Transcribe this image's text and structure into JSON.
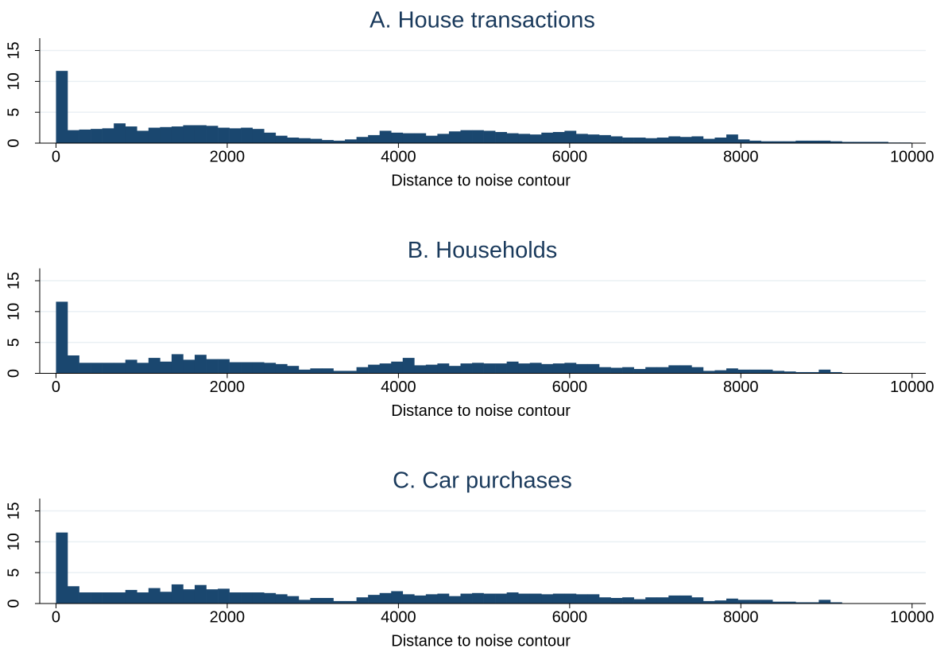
{
  "chart_data": [
    {
      "type": "histogram",
      "title": "A. House transactions",
      "xlabel": "Distance to noise contour",
      "color": "#1a476f",
      "bins": [
        0,
        135,
        270,
        405,
        540,
        675,
        810,
        945,
        1080,
        1215,
        1350,
        1485,
        1620,
        1755,
        1890,
        2025,
        2160,
        2295,
        2430,
        2565,
        2700,
        2835,
        2970,
        3105,
        3240,
        3375,
        3510,
        3645,
        3780,
        3915,
        4050,
        4185,
        4320,
        4455,
        4590,
        4725,
        4860,
        4995,
        5130,
        5265,
        5400,
        5535,
        5670,
        5805,
        5940,
        6075,
        6210,
        6345,
        6480,
        6615,
        6750,
        6885,
        7020,
        7155,
        7290,
        7425,
        7560,
        7695,
        7830,
        7965,
        8100,
        8235,
        8370,
        8505,
        8640,
        8775,
        8910,
        9045,
        9180,
        9315,
        9450,
        9585,
        9720,
        9855,
        9990
      ],
      "values": [
        11.7,
        2.1,
        2.2,
        2.3,
        2.4,
        3.2,
        2.7,
        2.0,
        2.5,
        2.6,
        2.7,
        2.9,
        2.9,
        2.8,
        2.5,
        2.4,
        2.5,
        2.3,
        1.7,
        1.2,
        0.9,
        0.8,
        0.7,
        0.5,
        0.4,
        0.6,
        1.0,
        1.3,
        2.0,
        1.7,
        1.6,
        1.6,
        1.2,
        1.5,
        1.9,
        2.1,
        2.1,
        2.0,
        1.8,
        1.6,
        1.5,
        1.4,
        1.7,
        1.8,
        2.0,
        1.5,
        1.4,
        1.3,
        1.1,
        0.9,
        0.9,
        0.8,
        0.9,
        1.1,
        1.0,
        1.1,
        0.7,
        0.9,
        1.4,
        0.6,
        0.4,
        0.3,
        0.3,
        0.3,
        0.4,
        0.4,
        0.4,
        0.3,
        0.2,
        0.2,
        0.2,
        0.2,
        0.1,
        0.1
      ],
      "xlim": [
        -190,
        10160
      ],
      "ylim": [
        0,
        17
      ],
      "xticks": [
        0,
        2000,
        4000,
        6000,
        8000,
        10000
      ],
      "yticks": [
        0,
        5,
        10,
        15
      ],
      "grid": true
    },
    {
      "type": "histogram",
      "title": "B. Households",
      "xlabel": "Distance to noise contour",
      "color": "#1a476f",
      "bins": [
        0,
        135,
        270,
        405,
        540,
        675,
        810,
        945,
        1080,
        1215,
        1350,
        1485,
        1620,
        1755,
        1890,
        2025,
        2160,
        2295,
        2430,
        2565,
        2700,
        2835,
        2970,
        3105,
        3240,
        3375,
        3510,
        3645,
        3780,
        3915,
        4050,
        4185,
        4320,
        4455,
        4590,
        4725,
        4860,
        4995,
        5130,
        5265,
        5400,
        5535,
        5670,
        5805,
        5940,
        6075,
        6210,
        6345,
        6480,
        6615,
        6750,
        6885,
        7020,
        7155,
        7290,
        7425,
        7560,
        7695,
        7830,
        7965,
        8100,
        8235,
        8370,
        8505,
        8640,
        8775,
        8910,
        9045,
        9180
      ],
      "values": [
        11.6,
        2.9,
        1.7,
        1.7,
        1.7,
        1.7,
        2.2,
        1.7,
        2.5,
        1.9,
        3.1,
        2.2,
        3.0,
        2.3,
        2.3,
        1.8,
        1.8,
        1.8,
        1.7,
        1.5,
        1.2,
        0.6,
        0.8,
        0.8,
        0.4,
        0.4,
        1.0,
        1.4,
        1.6,
        1.9,
        2.5,
        1.3,
        1.4,
        1.6,
        1.2,
        1.6,
        1.7,
        1.6,
        1.6,
        1.9,
        1.6,
        1.7,
        1.5,
        1.6,
        1.7,
        1.5,
        1.5,
        1.0,
        0.9,
        1.0,
        0.7,
        1.0,
        1.0,
        1.3,
        1.3,
        1.0,
        0.4,
        0.5,
        0.8,
        0.6,
        0.6,
        0.6,
        0.4,
        0.3,
        0.2,
        0.2,
        0.6,
        0.2
      ],
      "xlim": [
        -190,
        10160
      ],
      "ylim": [
        0,
        17
      ],
      "xticks": [
        0,
        2000,
        4000,
        6000,
        8000,
        10000
      ],
      "yticks": [
        0,
        5,
        10,
        15
      ],
      "grid": true
    },
    {
      "type": "histogram",
      "title": "C. Car purchases",
      "xlabel": "Distance to noise contour",
      "color": "#1a476f",
      "bins": [
        0,
        135,
        270,
        405,
        540,
        675,
        810,
        945,
        1080,
        1215,
        1350,
        1485,
        1620,
        1755,
        1890,
        2025,
        2160,
        2295,
        2430,
        2565,
        2700,
        2835,
        2970,
        3105,
        3240,
        3375,
        3510,
        3645,
        3780,
        3915,
        4050,
        4185,
        4320,
        4455,
        4590,
        4725,
        4860,
        4995,
        5130,
        5265,
        5400,
        5535,
        5670,
        5805,
        5940,
        6075,
        6210,
        6345,
        6480,
        6615,
        6750,
        6885,
        7020,
        7155,
        7290,
        7425,
        7560,
        7695,
        7830,
        7965,
        8100,
        8235,
        8370,
        8505,
        8640,
        8775,
        8910,
        9045,
        9180
      ],
      "values": [
        11.5,
        2.8,
        1.8,
        1.8,
        1.8,
        1.8,
        2.2,
        1.8,
        2.5,
        1.9,
        3.1,
        2.3,
        3.0,
        2.3,
        2.4,
        1.8,
        1.8,
        1.8,
        1.7,
        1.5,
        1.2,
        0.6,
        0.9,
        0.9,
        0.4,
        0.4,
        1.0,
        1.4,
        1.7,
        2.0,
        1.5,
        1.3,
        1.5,
        1.6,
        1.2,
        1.6,
        1.7,
        1.6,
        1.6,
        1.8,
        1.6,
        1.6,
        1.5,
        1.6,
        1.6,
        1.5,
        1.5,
        1.0,
        0.9,
        1.0,
        0.7,
        1.0,
        1.0,
        1.3,
        1.3,
        1.0,
        0.4,
        0.5,
        0.8,
        0.6,
        0.6,
        0.6,
        0.3,
        0.3,
        0.2,
        0.2,
        0.6,
        0.2
      ],
      "xlim": [
        -190,
        10160
      ],
      "ylim": [
        0,
        17
      ],
      "xticks": [
        0,
        2000,
        4000,
        6000,
        8000,
        10000
      ],
      "yticks": [
        0,
        5,
        10,
        15
      ],
      "grid": true
    }
  ]
}
